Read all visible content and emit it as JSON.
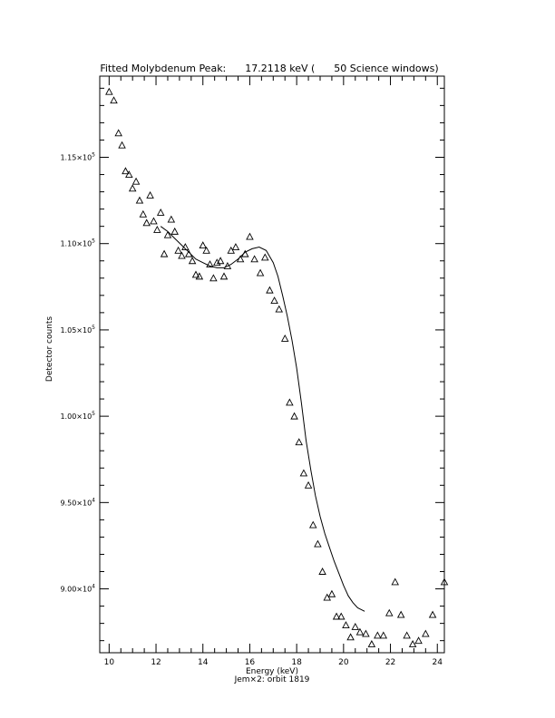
{
  "chart_data": {
    "type": "scatter",
    "title": "Fitted Molybdenum Peak:      17.2118 keV (      50 Science windows)",
    "xlabel": "Energy (keV)",
    "ylabel": "Detector counts",
    "footer": "Jem×2: orbit 1819",
    "xlim": [
      9.6,
      24.3
    ],
    "ylim": [
      86300,
      119700
    ],
    "x_ticks": [
      10,
      12,
      14,
      16,
      18,
      20,
      22,
      24
    ],
    "x_tick_labels": [
      "10",
      "12",
      "14",
      "16",
      "18",
      "20",
      "22",
      "24"
    ],
    "y_ticks": [
      90000,
      95000,
      100000,
      105000,
      110000,
      115000
    ],
    "y_tick_labels": [
      {
        "mantissa": "9.00×10",
        "exp": "4"
      },
      {
        "mantissa": "9.50×10",
        "exp": "4"
      },
      {
        "mantissa": "1.00×10",
        "exp": "5"
      },
      {
        "mantissa": "1.05×10",
        "exp": "5"
      },
      {
        "mantissa": "1.10×10",
        "exp": "5"
      },
      {
        "mantissa": "1.15×10",
        "exp": "5"
      }
    ],
    "grid": false,
    "series": [
      {
        "marker": "triangle",
        "color": "#000000",
        "x": [
          10.0,
          10.2,
          10.4,
          10.55,
          10.7,
          10.85,
          11.0,
          11.15,
          11.3,
          11.45,
          11.6,
          11.75,
          11.9,
          12.05,
          12.2,
          12.35,
          12.5,
          12.65,
          12.8,
          12.95,
          13.1,
          13.25,
          13.4,
          13.55,
          13.7,
          13.85,
          14.0,
          14.15,
          14.3,
          14.45,
          14.6,
          14.75,
          14.9,
          15.05,
          15.2,
          15.4,
          15.6,
          15.8,
          16.0,
          16.2,
          16.45,
          16.65,
          16.85,
          17.05,
          17.25,
          17.5,
          17.7,
          17.9,
          18.1,
          18.3,
          18.5,
          18.7,
          18.9,
          19.1,
          19.3,
          19.5,
          19.7,
          19.9,
          20.1,
          20.3,
          20.5,
          20.7,
          20.95,
          21.2,
          21.45,
          21.7,
          21.95,
          22.2,
          22.45,
          22.7,
          22.95,
          23.2,
          23.5,
          23.8,
          24.3
        ],
        "values": [
          118800,
          118300,
          116400,
          115700,
          114200,
          114000,
          113200,
          113600,
          112500,
          111700,
          111200,
          112800,
          111300,
          110800,
          111800,
          109400,
          110500,
          111400,
          110700,
          109600,
          109300,
          109800,
          109400,
          109000,
          108200,
          108100,
          109900,
          109600,
          108800,
          108000,
          108900,
          109000,
          108100,
          108700,
          109600,
          109800,
          109100,
          109400,
          110400,
          109100,
          108300,
          109200,
          107300,
          106700,
          106200,
          104500,
          100800,
          100000,
          98500,
          96700,
          96000,
          93700,
          92600,
          91000,
          89500,
          89700,
          88400,
          88400,
          87900,
          87200,
          87800,
          87500,
          87400,
          86800,
          87300,
          87300,
          88600,
          90400,
          88500,
          87300,
          86800,
          87000,
          87400,
          88500,
          90400
        ]
      },
      {
        "type": "line",
        "color": "#000000",
        "x": [
          12.2,
          12.5,
          12.8,
          13.1,
          13.4,
          13.7,
          14.0,
          14.3,
          14.6,
          14.9,
          15.2,
          15.5,
          15.8,
          16.1,
          16.4,
          16.7,
          17.0,
          17.2,
          17.4,
          17.6,
          17.8,
          18.0,
          18.2,
          18.4,
          18.6,
          18.8,
          19.0,
          19.2,
          19.4,
          19.6,
          19.8,
          20.0,
          20.2,
          20.4,
          20.6,
          20.9
        ],
        "values": [
          111000,
          110700,
          110300,
          109900,
          109500,
          109100,
          108900,
          108700,
          108600,
          108600,
          108800,
          109100,
          109500,
          109700,
          109800,
          109600,
          108900,
          108100,
          107000,
          105800,
          104400,
          102800,
          100800,
          98600,
          96900,
          95400,
          94200,
          93200,
          92400,
          91600,
          90900,
          90200,
          89600,
          89200,
          88900,
          88700
        ]
      }
    ]
  }
}
